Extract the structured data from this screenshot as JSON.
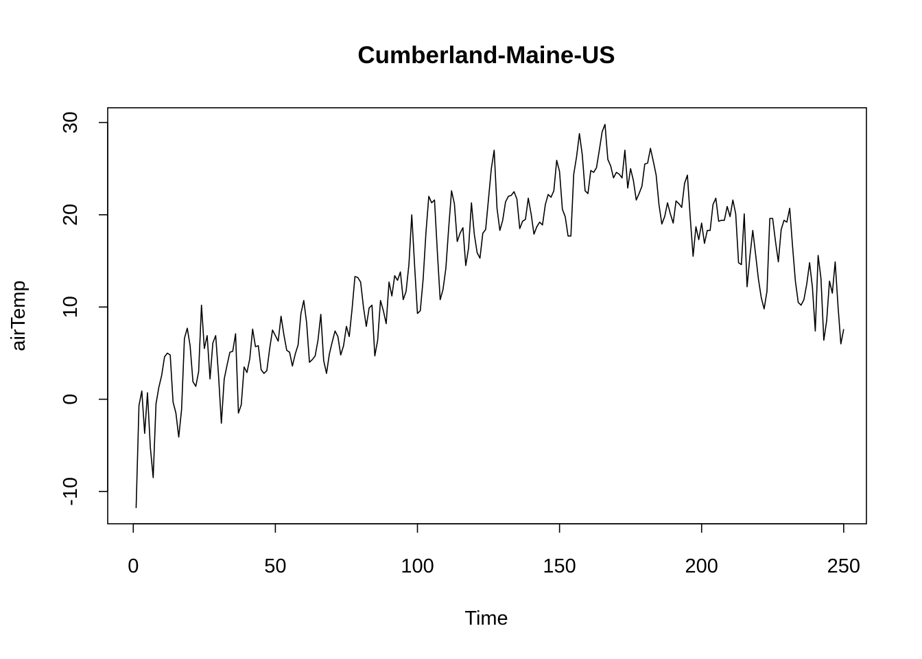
{
  "chart_data": {
    "type": "line",
    "title": "Cumberland-Maine-US",
    "xlabel": "Time",
    "ylabel": "airTemp",
    "xlim": [
      -9,
      258
    ],
    "ylim": [
      -13.5,
      31.6
    ],
    "xticks": [
      0,
      50,
      100,
      150,
      200,
      250
    ],
    "yticks": [
      -10,
      0,
      10,
      20,
      30
    ],
    "grid": false,
    "legend": "none",
    "series": [
      {
        "x_start": 1,
        "values": [
          -11.8,
          -0.7,
          0.9,
          -3.7,
          0.7,
          -5.2,
          -8.5,
          -0.5,
          1.3,
          2.6,
          4.6,
          5.0,
          4.8,
          -0.3,
          -1.5,
          -4.1,
          -1.1,
          6.6,
          7.7,
          5.8,
          1.9,
          1.4,
          3.0,
          10.2,
          5.5,
          6.9,
          2.2,
          6.1,
          6.9,
          2.6,
          -2.6,
          2.2,
          3.7,
          5.1,
          5.2,
          7.1,
          -1.5,
          -0.6,
          3.5,
          2.9,
          4.4,
          7.6,
          5.7,
          5.8,
          3.2,
          2.8,
          3.1,
          5.5,
          7.5,
          6.9,
          6.3,
          9.0,
          7.0,
          5.3,
          5.1,
          3.6,
          4.9,
          5.9,
          9.3,
          10.7,
          8.3,
          4.0,
          4.3,
          4.7,
          6.4,
          9.2,
          4.2,
          2.8,
          4.9,
          6.2,
          7.4,
          6.8,
          4.8,
          5.8,
          7.9,
          6.8,
          9.8,
          13.3,
          13.2,
          12.7,
          10.0,
          7.9,
          9.9,
          10.2,
          4.7,
          6.4,
          10.7,
          9.6,
          8.2,
          12.7,
          11.2,
          13.4,
          12.9,
          13.8,
          10.8,
          11.7,
          14.6,
          20.0,
          14.5,
          9.3,
          9.6,
          13.0,
          18.1,
          22.0,
          21.3,
          21.6,
          16.0,
          10.8,
          11.9,
          14.2,
          18.6,
          22.6,
          21.2,
          17.1,
          18.0,
          18.6,
          14.5,
          16.4,
          21.3,
          17.9,
          15.9,
          15.3,
          18.0,
          18.4,
          21.7,
          25.0,
          27.0,
          20.7,
          18.3,
          19.4,
          21.4,
          22.0,
          22.1,
          22.5,
          21.7,
          18.5,
          19.3,
          19.5,
          21.8,
          20.1,
          17.9,
          18.7,
          19.2,
          18.9,
          21.1,
          22.2,
          21.9,
          22.6,
          25.9,
          24.7,
          20.6,
          19.8,
          17.7,
          17.7,
          24.4,
          26.3,
          28.8,
          26.5,
          22.6,
          22.3,
          24.8,
          24.6,
          25.1,
          27.0,
          29.0,
          29.8,
          26.0,
          25.3,
          24.0,
          24.6,
          24.4,
          24.0,
          27.0,
          22.9,
          25.0,
          23.7,
          21.6,
          22.3,
          23.1,
          25.5,
          25.6,
          27.2,
          25.8,
          24.3,
          21.1,
          19.0,
          19.8,
          21.3,
          20.1,
          19.1,
          21.5,
          21.2,
          20.8,
          23.4,
          24.3,
          19.7,
          15.5,
          18.7,
          17.3,
          19.1,
          16.9,
          18.3,
          18.3,
          21.1,
          21.8,
          19.3,
          19.4,
          19.4,
          20.9,
          19.8,
          21.6,
          20.1,
          14.8,
          14.6,
          20.1,
          12.2,
          15.5,
          18.3,
          15.7,
          13.0,
          11.0,
          9.8,
          11.7,
          19.6,
          19.6,
          17.1,
          14.9,
          18.4,
          19.4,
          19.2,
          20.7,
          16.6,
          12.8,
          10.5,
          10.2,
          10.8,
          12.5,
          14.8,
          12.1,
          7.4,
          15.6,
          13.1,
          6.4,
          8.5,
          12.8,
          11.5,
          14.9,
          10.1,
          6.0,
          7.6
        ]
      }
    ]
  }
}
